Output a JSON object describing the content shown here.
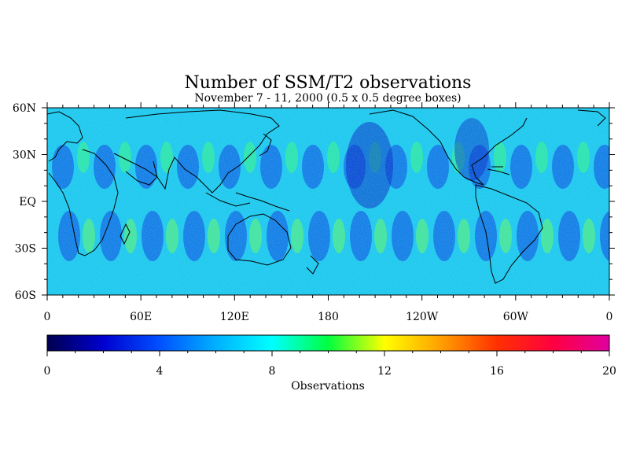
{
  "chart_data": {
    "type": "heatmap",
    "title": "Number of SSM/T2 observations",
    "subtitle": "November 7 - 11, 2000 (0.5 x 0.5 degree boxes)",
    "x_ticks": [
      "0",
      "60E",
      "120E",
      "180",
      "120W",
      "60W",
      "0"
    ],
    "x_tick_lons": [
      0,
      60,
      120,
      180,
      240,
      300,
      360
    ],
    "y_ticks": [
      "60N",
      "30N",
      "EQ",
      "30S",
      "60S"
    ],
    "y_tick_lats": [
      60,
      30,
      0,
      -30,
      -60
    ],
    "xlim": [
      0,
      360
    ],
    "ylim": [
      -60,
      60
    ],
    "grid_resolution_deg": 0.5,
    "colorbar": {
      "label": "Observations",
      "ticks": [
        "0",
        "4",
        "8",
        "12",
        "16",
        "20"
      ],
      "tick_values": [
        0,
        4,
        8,
        12,
        16,
        20
      ],
      "range": [
        0,
        20
      ],
      "colors": [
        "#000050",
        "#0000d0",
        "#0050ff",
        "#00b0ff",
        "#00ffff",
        "#00ff40",
        "#ffff00",
        "#ffa000",
        "#ff3000",
        "#ff0040",
        "#e000a0"
      ]
    },
    "background_value_range": [
      5,
      8
    ],
    "coastlines": "black outline"
  }
}
